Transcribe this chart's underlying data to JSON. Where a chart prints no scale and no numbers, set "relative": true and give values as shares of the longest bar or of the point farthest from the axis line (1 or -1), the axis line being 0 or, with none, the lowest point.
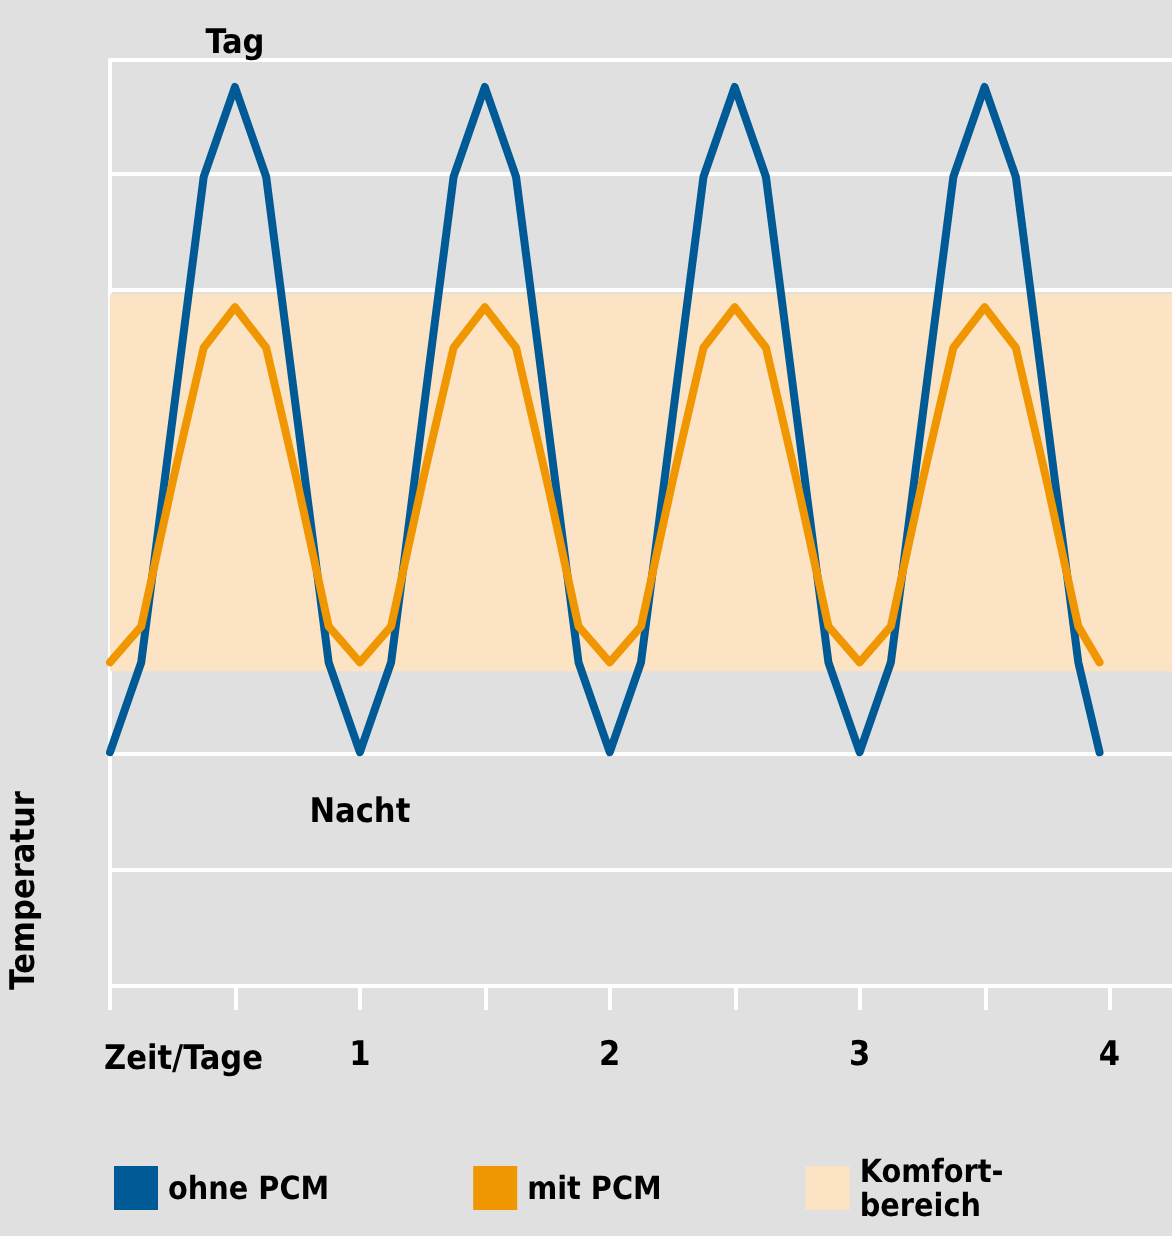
{
  "chart_data": {
    "type": "line",
    "relative": true,
    "xlabel": "Zeit/Tage",
    "ylabel": "Temperatur",
    "xlim": [
      0,
      4.25
    ],
    "xticks": [
      {
        "value": 0,
        "label": null
      },
      {
        "value": 0.5,
        "label": null
      },
      1,
      {
        "value": 1.5,
        "label": null
      },
      2,
      {
        "value": 2.5,
        "label": null
      },
      3,
      {
        "value": 3.5,
        "label": null
      },
      4
    ],
    "x": [
      0,
      0.125,
      0.25,
      0.375,
      0.5,
      0.625,
      0.75,
      0.875,
      1,
      1.125,
      1.25,
      1.375,
      1.5,
      1.625,
      1.75,
      1.875,
      2,
      2.125,
      2.25,
      2.375,
      2.5,
      2.625,
      2.75,
      2.875,
      3,
      3.125,
      3.25,
      3.375,
      3.5,
      3.625,
      3.75,
      3.875,
      3.96
    ],
    "series": [
      {
        "name": "ohne PCM",
        "color": "#005a96",
        "values": [
          0.26,
          0.36,
          0.63,
          0.9,
          1,
          0.9,
          0.63,
          0.36,
          0.26,
          0.36,
          0.63,
          0.9,
          1,
          0.9,
          0.63,
          0.36,
          0.26,
          0.36,
          0.63,
          0.9,
          1,
          0.9,
          0.63,
          0.36,
          0.26,
          0.36,
          0.63,
          0.9,
          1,
          0.9,
          0.63,
          0.36,
          0.26
        ]
      },
      {
        "name": "mit PCM",
        "color": "#f09600",
        "values": [
          0.36,
          0.4,
          0.56,
          0.71,
          0.755,
          0.71,
          0.56,
          0.4,
          0.36,
          0.4,
          0.56,
          0.71,
          0.755,
          0.71,
          0.56,
          0.4,
          0.36,
          0.4,
          0.56,
          0.71,
          0.755,
          0.71,
          0.56,
          0.4,
          0.36,
          0.4,
          0.56,
          0.71,
          0.755,
          0.71,
          0.56,
          0.4,
          0.36
        ]
      }
    ],
    "bands": [
      {
        "axis": "y",
        "from": 0.35,
        "to": 0.77,
        "label": "Komfort-\nbereich",
        "color": "#fce3c4"
      }
    ],
    "annotations": [
      {
        "text": "Tag",
        "x": 0.5,
        "y": 1
      },
      {
        "text": "Nacht",
        "x": 1,
        "y": 0.26
      }
    ],
    "grid": "y",
    "legend": "bottom",
    "marker": "none",
    "line_style": "solid"
  }
}
